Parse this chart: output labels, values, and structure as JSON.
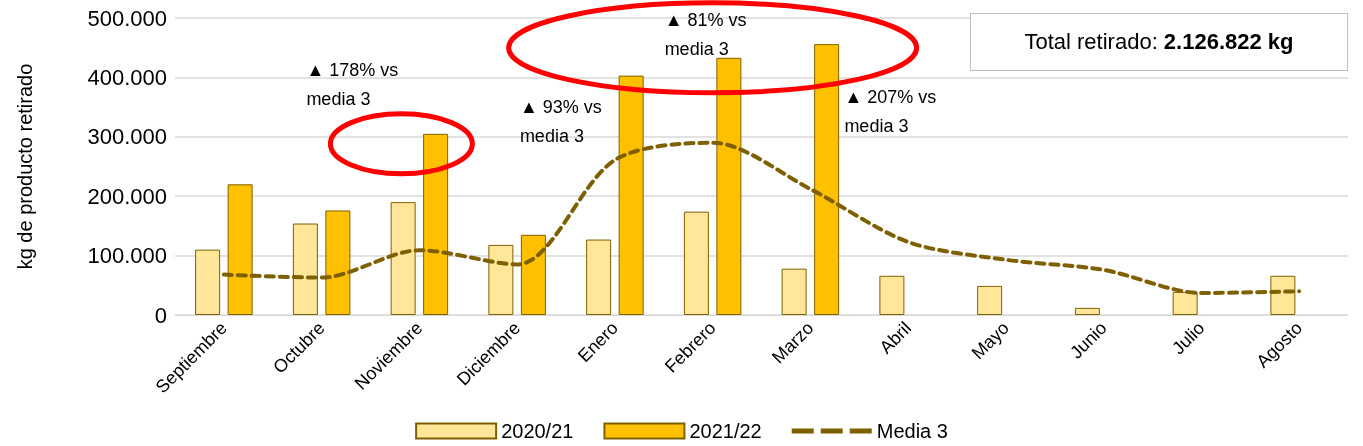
{
  "chart_data": {
    "type": "bar",
    "ylabel": "kg de producto retirado",
    "categories": [
      "Septiembre",
      "Octubre",
      "Noviembre",
      "Diciembre",
      "Enero",
      "Febrero",
      "Marzo",
      "Abril",
      "Mayo",
      "Junio",
      "Julio",
      "Agosto"
    ],
    "series": [
      {
        "name": "2020/21",
        "color": "#ffe699",
        "values": [
          110000,
          154000,
          190000,
          118000,
          127000,
          174000,
          78000,
          66000,
          49000,
          12000,
          39000,
          66000
        ]
      },
      {
        "name": "2021/22",
        "color": "#ffc000",
        "values": [
          220000,
          176000,
          305000,
          135000,
          403000,
          433000,
          456000,
          null,
          null,
          null,
          null,
          null
        ]
      },
      {
        "name": "Media 3",
        "type": "line",
        "color": "#7f6000",
        "line_style": "dashed",
        "marker": "none",
        "values": [
          68000,
          63000,
          109000,
          85000,
          261000,
          290000,
          212000,
          123000,
          93000,
          76000,
          37000,
          40000
        ]
      }
    ],
    "ylim": [
      0,
      500000
    ],
    "yticks": [
      {
        "value": 0,
        "label": "0"
      },
      {
        "value": 100000,
        "label": "100.000"
      },
      {
        "value": 200000,
        "label": "200.000"
      },
      {
        "value": 300000,
        "label": "300.000"
      },
      {
        "value": 400000,
        "label": "400.000"
      },
      {
        "value": 500000,
        "label": "500.000"
      }
    ],
    "grid": "y",
    "legend": "bottom",
    "annotations": [
      {
        "text": "▲ 178% vs media 3",
        "x": "Noviembre",
        "y": 305000
      },
      {
        "text": "▲ 93% vs media 3",
        "x": "Enero",
        "y": 403000
      },
      {
        "text": "▲ 81% vs media 3",
        "x": "Febrero",
        "y": 433000
      },
      {
        "text": "▲ 207% vs media 3",
        "x": "Marzo",
        "y": 350000
      },
      "Total retirado: 2.126.822 kg"
    ]
  }
}
